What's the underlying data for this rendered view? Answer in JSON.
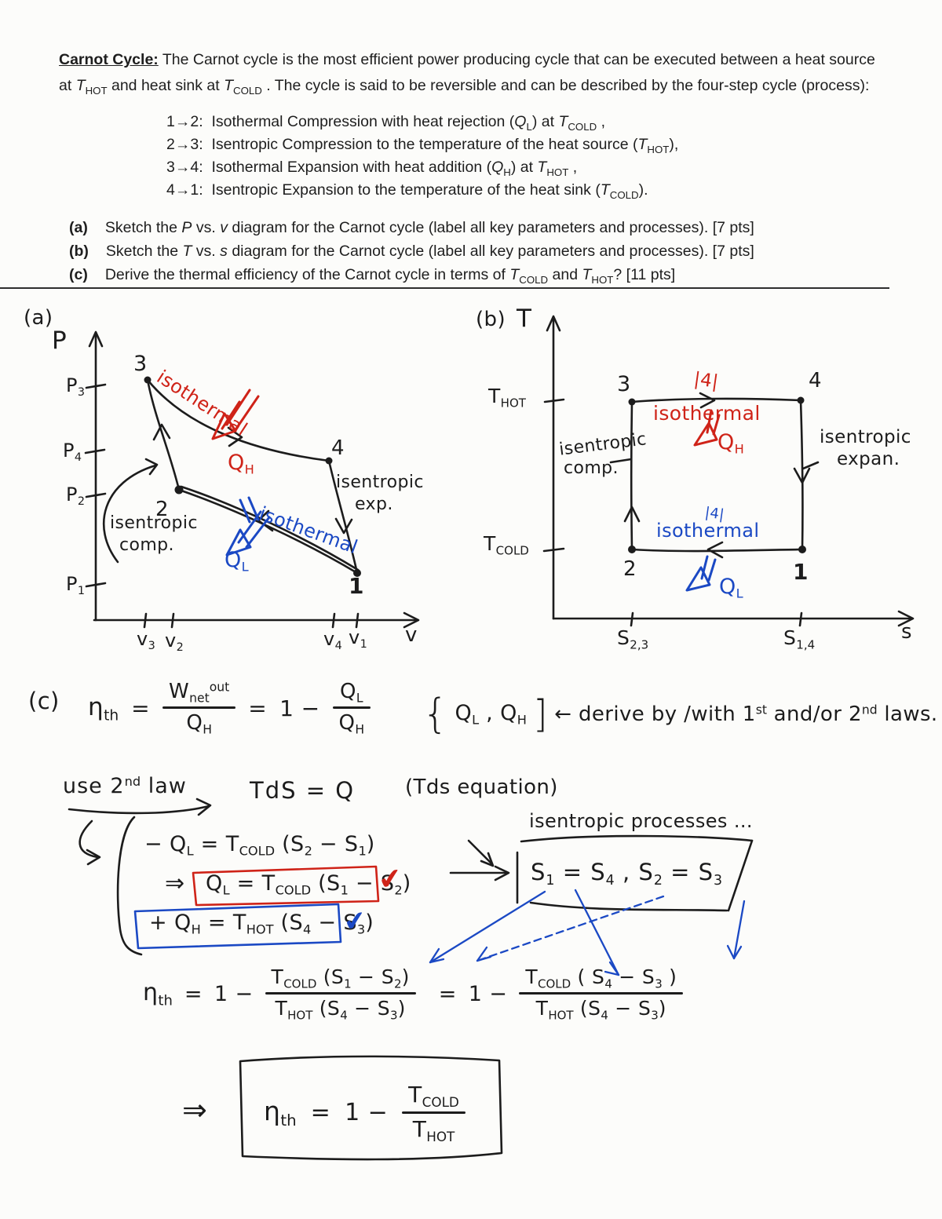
{
  "colors": {
    "ink": "#1c1c1c",
    "red": "#cf2318",
    "blue": "#1b49c4"
  },
  "header": {
    "title": "Carnot Cycle:",
    "line1": " The Carnot cycle is the most efficient power producing cycle that can be executed between a heat source",
    "line2": "at *T*~HOT~ and heat sink at *T*~COLD~ . The cycle is said to be reversible and can be described by the four-step cycle (process):"
  },
  "steps": [
    {
      "label": "1→2:",
      "text": "Isothermal Compression with heat rejection (*Q*~L~) at *T*~COLD~ ,"
    },
    {
      "label": "2→3:",
      "text": "Isentropic Compression to the temperature of the heat source (*T*~HOT~),"
    },
    {
      "label": "3→4:",
      "text": "Isothermal Expansion with heat addition (*Q*~H~) at *T*~HOT~ ,"
    },
    {
      "label": "4→1:",
      "text": "Isentropic Expansion to the temperature of the heat sink  (*T*~COLD~)."
    }
  ],
  "questions": [
    {
      "label": "(a)",
      "text": "Sketch the *P* vs. *v* diagram for the Carnot cycle (label all key parameters and processes).  [7 pts]"
    },
    {
      "label": "(b)",
      "text": "Sketch the *T* vs. *s* diagram for the Carnot cycle (label all key parameters and processes).  [7 pts]"
    },
    {
      "label": "(c)",
      "text": "Derive the thermal efficiency of the Carnot cycle in terms of *T*~COLD~ and *T*~HOT~?  [11 pts]"
    }
  ],
  "pv": {
    "panel_label": "(a)",
    "y_axis": "P",
    "x_axis": "v",
    "y_tick_p3": "P~3~",
    "y_tick_p4": "P~4~",
    "y_tick_p2": "P~2~",
    "y_tick_p1": "P~1~",
    "x_tick_v3": "v~3~",
    "x_tick_v2": "v~2~",
    "x_tick_v4": "v~4~",
    "x_tick_v1": "v~1~",
    "pt1": "1",
    "pt2": "2",
    "pt3": "3",
    "pt4": "4",
    "iso_top": "isothermal",
    "qh": "Q~H~",
    "iso_bottom": "isothermal",
    "ql": "Q~L~",
    "isen_comp_l1": "isentropic",
    "isen_comp_l2": "comp.",
    "isen_exp_l1": "isentropic",
    "isen_exp_l2": "exp."
  },
  "ts": {
    "panel_label": "(b)",
    "y_axis": "T",
    "x_axis": "s",
    "y_tick_hot": "T~HOT~",
    "y_tick_cold": "T~COLD~",
    "x_tick_23": "S~2,3~",
    "x_tick_14": "S~1,4~",
    "pt1": "1",
    "pt2": "2",
    "pt3": "3",
    "pt4": "4",
    "hash_top": "|4|",
    "iso_top": "isothermal",
    "qh": "Q~H~",
    "hash_bottom": "|4|",
    "iso_bottom": "isothermal",
    "ql": "Q~L~",
    "isen_comp_l1": "isentropic",
    "isen_comp_l2": "comp.",
    "isen_exp_l1": "isentropic",
    "isen_exp_l2": "expan."
  },
  "derivation": {
    "part_label": "(c)",
    "eta": "η~th~",
    "equals": "=",
    "one_minus": "1 −",
    "frac1_num": "W~net~^out^",
    "frac1_den": "Q~H~",
    "frac2_num": "Q~L~",
    "frac2_den": "Q~H~",
    "note_brace_l": "{",
    "note_inner": "Q~L~ , Q~H~",
    "note_brace_r": "]",
    "note_rest": "← derive by /with 1^st^ and/or 2^nd^ laws.",
    "use_law": "use 2^nd^ law",
    "tds": "TdS = Q",
    "tds_note": "(Tds equation)",
    "isen_note": "isentropic processes ...",
    "eq1": "− Q~L~ = T~COLD~ (S~2~ − S~1~)",
    "eq2_arrow": "⇒",
    "eq2": "Q~L~ = T~COLD~ (S~1~ − S~2~)",
    "check_red": "✔",
    "eq3": "+ Q~H~ = T~HOT~ (S~4~ − S~3~)",
    "check_blue": "✔",
    "sbox": "S~1~ = S~4~ ,  S~2~ = S~3~",
    "frac3_num": "T~COLD~ (S~1~ − S~2~)",
    "frac3_den": "T~HOT~ (S~4~ − S~3~)",
    "frac4_num": "T~COLD~ ( S~4~ − S~3~ )",
    "frac4_den": "T~HOT~ (S~4~ − S~3~)",
    "implies": "⇒",
    "frac5_num": "T~COLD~",
    "frac5_den": "T~HOT~"
  }
}
